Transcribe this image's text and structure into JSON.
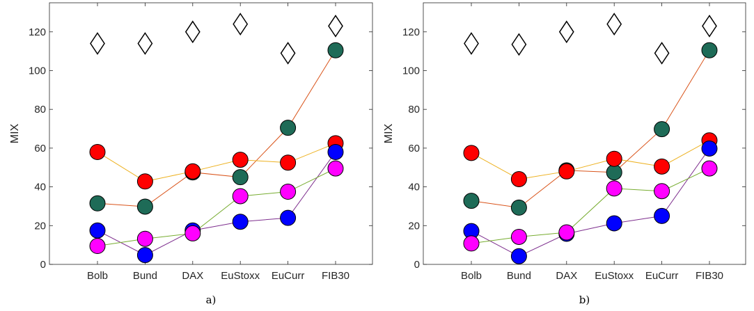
{
  "chart_data": [
    {
      "type": "line",
      "caption": "a)",
      "ylabel": "MIX",
      "xlabel": "",
      "title": "",
      "categories": [
        "Bolb",
        "Bund",
        "DAX",
        "EuStoxx",
        "EuCurr",
        "FIB30"
      ],
      "ylim": [
        0,
        135
      ],
      "yticks": [
        0,
        20,
        40,
        60,
        80,
        100,
        120
      ],
      "grid": false,
      "series": [
        {
          "marker": "diamond",
          "color": "#ffffff",
          "values": [
            114,
            114,
            120,
            124,
            109,
            123
          ]
        },
        {
          "marker": "circle",
          "color": "#1e6b57",
          "line_color": "#d95319",
          "values": [
            31.5,
            29.8,
            47.5,
            45,
            70.5,
            110.5
          ]
        },
        {
          "marker": "circle",
          "color": "#ff0000",
          "line_color": "#edb120",
          "values": [
            58,
            42.8,
            48,
            54,
            52.5,
            62.5
          ]
        },
        {
          "marker": "circle",
          "color": "#0000ff",
          "line_color": "#7e2f8e",
          "values": [
            17.5,
            4.8,
            17.5,
            22,
            24,
            58
          ]
        },
        {
          "marker": "circle",
          "color": "#ff00ff",
          "line_color": "#77ac30",
          "values": [
            9.5,
            13.2,
            16,
            35.2,
            37.5,
            49.5
          ]
        }
      ]
    },
    {
      "type": "line",
      "caption": "b)",
      "ylabel": "MIX",
      "xlabel": "",
      "title": "",
      "categories": [
        "Bolb",
        "Bund",
        "DAX",
        "EuStoxx",
        "EuCurr",
        "FIB30"
      ],
      "ylim": [
        0,
        135
      ],
      "yticks": [
        0,
        20,
        40,
        60,
        80,
        100,
        120
      ],
      "grid": false,
      "series": [
        {
          "marker": "diamond",
          "color": "#ffffff",
          "values": [
            114,
            113.5,
            120,
            124,
            109,
            123
          ]
        },
        {
          "marker": "circle",
          "color": "#1e6b57",
          "line_color": "#d95319",
          "values": [
            32.8,
            29.3,
            48.5,
            47.5,
            69.8,
            110.5
          ]
        },
        {
          "marker": "circle",
          "color": "#ff0000",
          "line_color": "#edb120",
          "values": [
            57.5,
            44,
            48,
            54.5,
            50.5,
            64
          ]
        },
        {
          "marker": "circle",
          "color": "#0000ff",
          "line_color": "#7e2f8e",
          "values": [
            17.2,
            4.2,
            15.8,
            21.2,
            25,
            59.8
          ]
        },
        {
          "marker": "circle",
          "color": "#ff00ff",
          "line_color": "#77ac30",
          "values": [
            10.8,
            14.2,
            16.5,
            39.2,
            37.8,
            49.5
          ]
        }
      ]
    }
  ]
}
